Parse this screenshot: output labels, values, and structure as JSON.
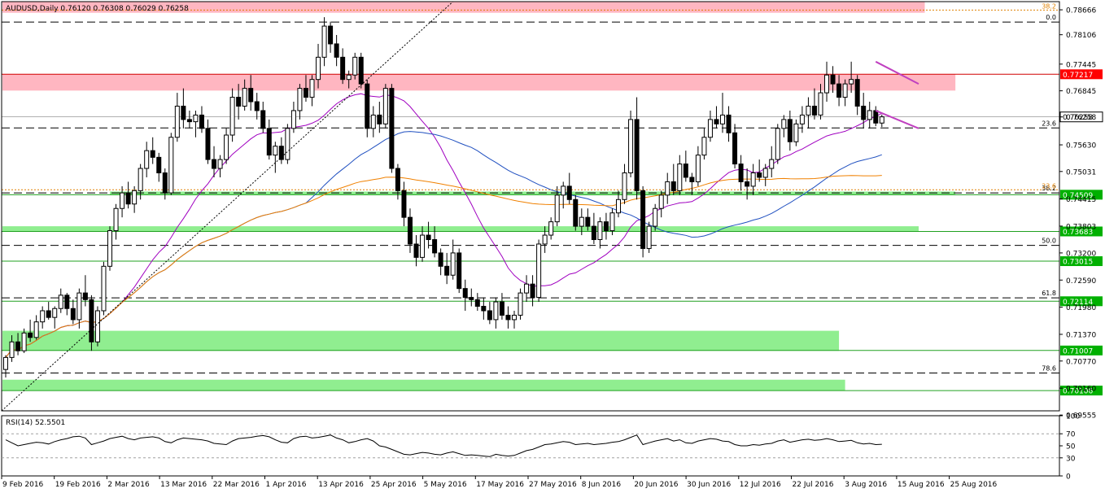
{
  "chart_data": {
    "type": "candlestick",
    "title": "AUDUSD,Daily",
    "ohlc_header": "0.76120 0.76308 0.76029 0.76258",
    "symbol": "AUDUSD",
    "timeframe": "Daily",
    "price_axis": {
      "ylim": [
        0.6965,
        0.7885
      ],
      "ticks": [
        "0.78666",
        "0.78106",
        "0.77445",
        "0.76845",
        "0.76258",
        "0.75630",
        "0.75031",
        "0.74415",
        "0.73803",
        "0.73200",
        "0.72590",
        "0.71980",
        "0.71370",
        "0.70770",
        "0.70160",
        "0.69555"
      ]
    },
    "time_axis": {
      "labels": [
        "9 Feb 2016",
        "19 Feb 2016",
        "2 Mar 2016",
        "13 Mar 2016",
        "22 Mar 2016",
        "1 Apr 2016",
        "13 Apr 2016",
        "25 Apr 2016",
        "5 May 2016",
        "17 May 2016",
        "27 May 2016",
        "8 Jun 2016",
        "20 Jun 2016",
        "30 Jun 2016",
        "12 Jul 2016",
        "22 Jul 2016",
        "3 Aug 2016",
        "15 Aug 2016",
        "25 Aug 2016"
      ]
    },
    "current_price": {
      "value": 0.76258,
      "label": "0.76258"
    },
    "zones": [
      {
        "color": "red",
        "from": 0.786,
        "to": 0.7885,
        "x_end_bar": 150
      },
      {
        "color": "red",
        "from": 0.7685,
        "to": 0.7722,
        "x_end_bar": 155
      },
      {
        "color": "green",
        "from": 0.745,
        "to": 0.7458,
        "x_start_bar": 17,
        "x_end_bar": 155
      },
      {
        "color": "green",
        "from": 0.7368,
        "to": 0.738,
        "x_end_bar": 149
      },
      {
        "color": "green",
        "from": 0.71,
        "to": 0.7145,
        "x_end_bar": 136
      },
      {
        "color": "green",
        "from": 0.701,
        "to": 0.7035,
        "x_end_bar": 137
      }
    ],
    "levels": [
      {
        "value": 0.77217,
        "label": "0.77217",
        "color": "red"
      },
      {
        "value": 0.74509,
        "label": "0.74509",
        "color": "green"
      },
      {
        "value": 0.73683,
        "label": "0.73683",
        "color": "green"
      },
      {
        "value": 0.73015,
        "label": "0.73015",
        "color": "green"
      },
      {
        "value": 0.72114,
        "label": "0.72114",
        "color": "green"
      },
      {
        "value": 0.71007,
        "label": "0.71007",
        "color": "green"
      },
      {
        "value": 0.70106,
        "label": "0.70106",
        "color": "green"
      }
    ],
    "fibonacci": [
      {
        "label": "0.0",
        "value": 0.7839
      },
      {
        "label": "23.6",
        "value": 0.7601
      },
      {
        "label": "38.2",
        "value": 0.7455
      },
      {
        "label": "50.0",
        "value": 0.7337
      },
      {
        "label": "61.8",
        "value": 0.7219
      },
      {
        "label": "78.6",
        "value": 0.705
      }
    ],
    "fibonacci_orange": [
      {
        "label": "38.2",
        "value": 0.7866
      },
      {
        "label": "23.6",
        "value": 0.7462
      }
    ],
    "candles": [
      [
        0.7058,
        0.709,
        0.704,
        0.7085
      ],
      [
        0.7085,
        0.7135,
        0.7075,
        0.712
      ],
      [
        0.712,
        0.714,
        0.709,
        0.71
      ],
      [
        0.71,
        0.715,
        0.7095,
        0.714
      ],
      [
        0.714,
        0.717,
        0.712,
        0.713
      ],
      [
        0.713,
        0.718,
        0.7125,
        0.7165
      ],
      [
        0.7165,
        0.72,
        0.715,
        0.719
      ],
      [
        0.719,
        0.721,
        0.717,
        0.7175
      ],
      [
        0.7175,
        0.72,
        0.715,
        0.7195
      ],
      [
        0.7195,
        0.724,
        0.7185,
        0.7225
      ],
      [
        0.7225,
        0.723,
        0.718,
        0.7195
      ],
      [
        0.7195,
        0.7215,
        0.716,
        0.717
      ],
      [
        0.717,
        0.724,
        0.715,
        0.723
      ],
      [
        0.723,
        0.727,
        0.72,
        0.7215
      ],
      [
        0.7215,
        0.7225,
        0.71,
        0.712
      ],
      [
        0.712,
        0.72,
        0.711,
        0.719
      ],
      [
        0.719,
        0.73,
        0.718,
        0.729
      ],
      [
        0.729,
        0.738,
        0.728,
        0.737
      ],
      [
        0.737,
        0.743,
        0.735,
        0.742
      ],
      [
        0.742,
        0.747,
        0.74,
        0.7455
      ],
      [
        0.7455,
        0.748,
        0.742,
        0.743
      ],
      [
        0.743,
        0.747,
        0.741,
        0.746
      ],
      [
        0.746,
        0.752,
        0.744,
        0.751
      ],
      [
        0.751,
        0.757,
        0.749,
        0.755
      ],
      [
        0.755,
        0.758,
        0.752,
        0.7535
      ],
      [
        0.7535,
        0.7545,
        0.748,
        0.75
      ],
      [
        0.75,
        0.751,
        0.744,
        0.7455
      ],
      [
        0.7455,
        0.759,
        0.745,
        0.758
      ],
      [
        0.758,
        0.768,
        0.757,
        0.765
      ],
      [
        0.765,
        0.769,
        0.76,
        0.762
      ],
      [
        0.762,
        0.764,
        0.76,
        0.7615
      ],
      [
        0.7615,
        0.764,
        0.758,
        0.763
      ],
      [
        0.763,
        0.765,
        0.759,
        0.76
      ],
      [
        0.76,
        0.762,
        0.752,
        0.753
      ],
      [
        0.753,
        0.756,
        0.749,
        0.751
      ],
      [
        0.751,
        0.754,
        0.749,
        0.753
      ],
      [
        0.753,
        0.76,
        0.752,
        0.7585
      ],
      [
        0.7585,
        0.769,
        0.757,
        0.767
      ],
      [
        0.767,
        0.77,
        0.762,
        0.765
      ],
      [
        0.765,
        0.771,
        0.764,
        0.769
      ],
      [
        0.769,
        0.772,
        0.764,
        0.766
      ],
      [
        0.766,
        0.768,
        0.762,
        0.764
      ],
      [
        0.764,
        0.766,
        0.759,
        0.76
      ],
      [
        0.76,
        0.762,
        0.753,
        0.754
      ],
      [
        0.754,
        0.757,
        0.75,
        0.756
      ],
      [
        0.756,
        0.758,
        0.752,
        0.753
      ],
      [
        0.753,
        0.761,
        0.752,
        0.76
      ],
      [
        0.76,
        0.766,
        0.759,
        0.764
      ],
      [
        0.764,
        0.77,
        0.762,
        0.769
      ],
      [
        0.769,
        0.772,
        0.766,
        0.767
      ],
      [
        0.767,
        0.772,
        0.765,
        0.771
      ],
      [
        0.771,
        0.779,
        0.769,
        0.776
      ],
      [
        0.776,
        0.785,
        0.774,
        0.783
      ],
      [
        0.783,
        0.784,
        0.777,
        0.779
      ],
      [
        0.779,
        0.781,
        0.774,
        0.776
      ],
      [
        0.776,
        0.778,
        0.77,
        0.771
      ],
      [
        0.771,
        0.773,
        0.769,
        0.772
      ],
      [
        0.772,
        0.777,
        0.771,
        0.776
      ],
      [
        0.776,
        0.777,
        0.769,
        0.77
      ],
      [
        0.77,
        0.771,
        0.758,
        0.76
      ],
      [
        0.76,
        0.765,
        0.758,
        0.763
      ],
      [
        0.763,
        0.766,
        0.759,
        0.761
      ],
      [
        0.761,
        0.77,
        0.76,
        0.769
      ],
      [
        0.769,
        0.77,
        0.75,
        0.751
      ],
      [
        0.751,
        0.752,
        0.744,
        0.746
      ],
      [
        0.746,
        0.748,
        0.738,
        0.74
      ],
      [
        0.74,
        0.742,
        0.732,
        0.734
      ],
      [
        0.734,
        0.736,
        0.729,
        0.731
      ],
      [
        0.731,
        0.738,
        0.73,
        0.736
      ],
      [
        0.736,
        0.739,
        0.733,
        0.735
      ],
      [
        0.735,
        0.738,
        0.731,
        0.732
      ],
      [
        0.732,
        0.733,
        0.727,
        0.729
      ],
      [
        0.729,
        0.732,
        0.725,
        0.727
      ],
      [
        0.727,
        0.735,
        0.726,
        0.732
      ],
      [
        0.732,
        0.733,
        0.723,
        0.724
      ],
      [
        0.724,
        0.726,
        0.719,
        0.722
      ],
      [
        0.722,
        0.724,
        0.72,
        0.7215
      ],
      [
        0.7215,
        0.723,
        0.719,
        0.72
      ],
      [
        0.72,
        0.722,
        0.717,
        0.719
      ],
      [
        0.719,
        0.721,
        0.716,
        0.717
      ],
      [
        0.717,
        0.722,
        0.715,
        0.721
      ],
      [
        0.721,
        0.723,
        0.717,
        0.718
      ],
      [
        0.718,
        0.72,
        0.715,
        0.717
      ],
      [
        0.717,
        0.719,
        0.715,
        0.718
      ],
      [
        0.718,
        0.724,
        0.717,
        0.723
      ],
      [
        0.723,
        0.727,
        0.721,
        0.725
      ],
      [
        0.725,
        0.727,
        0.72,
        0.722
      ],
      [
        0.722,
        0.735,
        0.721,
        0.734
      ],
      [
        0.734,
        0.738,
        0.732,
        0.736
      ],
      [
        0.736,
        0.74,
        0.735,
        0.739
      ],
      [
        0.739,
        0.747,
        0.738,
        0.745
      ],
      [
        0.745,
        0.748,
        0.742,
        0.747
      ],
      [
        0.747,
        0.75,
        0.743,
        0.744
      ],
      [
        0.744,
        0.745,
        0.737,
        0.738
      ],
      [
        0.738,
        0.742,
        0.736,
        0.74
      ],
      [
        0.74,
        0.742,
        0.737,
        0.738
      ],
      [
        0.738,
        0.741,
        0.734,
        0.735
      ],
      [
        0.735,
        0.74,
        0.733,
        0.739
      ],
      [
        0.739,
        0.741,
        0.735,
        0.737
      ],
      [
        0.737,
        0.742,
        0.736,
        0.741
      ],
      [
        0.741,
        0.746,
        0.74,
        0.744
      ],
      [
        0.744,
        0.752,
        0.743,
        0.75
      ],
      [
        0.75,
        0.764,
        0.749,
        0.762
      ],
      [
        0.762,
        0.767,
        0.744,
        0.746
      ],
      [
        0.746,
        0.747,
        0.731,
        0.733
      ],
      [
        0.733,
        0.739,
        0.732,
        0.738
      ],
      [
        0.738,
        0.743,
        0.737,
        0.742
      ],
      [
        0.742,
        0.746,
        0.74,
        0.745
      ],
      [
        0.745,
        0.75,
        0.743,
        0.748
      ],
      [
        0.748,
        0.752,
        0.745,
        0.746
      ],
      [
        0.746,
        0.754,
        0.745,
        0.752
      ],
      [
        0.752,
        0.755,
        0.748,
        0.749
      ],
      [
        0.749,
        0.75,
        0.745,
        0.748
      ],
      [
        0.748,
        0.756,
        0.747,
        0.754
      ],
      [
        0.754,
        0.76,
        0.753,
        0.758
      ],
      [
        0.758,
        0.764,
        0.757,
        0.762
      ],
      [
        0.762,
        0.765,
        0.76,
        0.761
      ],
      [
        0.761,
        0.768,
        0.759,
        0.763
      ],
      [
        0.763,
        0.765,
        0.757,
        0.759
      ],
      [
        0.759,
        0.761,
        0.751,
        0.752
      ],
      [
        0.752,
        0.754,
        0.746,
        0.748
      ],
      [
        0.748,
        0.751,
        0.744,
        0.747
      ],
      [
        0.747,
        0.752,
        0.745,
        0.75
      ],
      [
        0.75,
        0.753,
        0.748,
        0.749
      ],
      [
        0.749,
        0.752,
        0.747,
        0.751
      ],
      [
        0.751,
        0.756,
        0.749,
        0.753
      ],
      [
        0.753,
        0.761,
        0.752,
        0.76
      ],
      [
        0.76,
        0.763,
        0.758,
        0.762
      ],
      [
        0.762,
        0.764,
        0.755,
        0.757
      ],
      [
        0.757,
        0.762,
        0.756,
        0.761
      ],
      [
        0.761,
        0.765,
        0.759,
        0.763
      ],
      [
        0.763,
        0.767,
        0.76,
        0.765
      ],
      [
        0.765,
        0.769,
        0.762,
        0.763
      ],
      [
        0.763,
        0.77,
        0.762,
        0.768
      ],
      [
        0.768,
        0.775,
        0.766,
        0.772
      ],
      [
        0.772,
        0.774,
        0.768,
        0.77
      ],
      [
        0.77,
        0.772,
        0.765,
        0.767
      ],
      [
        0.767,
        0.771,
        0.765,
        0.77
      ],
      [
        0.77,
        0.775,
        0.768,
        0.771
      ],
      [
        0.771,
        0.772,
        0.763,
        0.765
      ],
      [
        0.765,
        0.768,
        0.76,
        0.762
      ],
      [
        0.762,
        0.766,
        0.76,
        0.764
      ],
      [
        0.764,
        0.765,
        0.7605,
        0.7612
      ],
      [
        0.7612,
        0.7631,
        0.7603,
        0.7626
      ]
    ],
    "series": [
      {
        "name": "",
        "color": "#a000c0"
      },
      {
        "name": "",
        "color": "#2050c0"
      },
      {
        "name": "",
        "color": "#f08000"
      }
    ],
    "rsi": {
      "label": "RSI(14) 52.5501",
      "ticks": [
        "100",
        "70",
        "50",
        "30",
        "0"
      ],
      "levels": [
        70,
        30
      ],
      "values": [
        60,
        55,
        50,
        52,
        54,
        56,
        55,
        53,
        57,
        60,
        62,
        65,
        66,
        63,
        52,
        55,
        58,
        62,
        64,
        66,
        62,
        60,
        63,
        64,
        65,
        63,
        57,
        55,
        60,
        63,
        62,
        61,
        60,
        58,
        54,
        53,
        52,
        58,
        62,
        63,
        64,
        66,
        67,
        65,
        60,
        56,
        55,
        62,
        65,
        66,
        63,
        64,
        66,
        68,
        63,
        60,
        55,
        57,
        60,
        62,
        58,
        50,
        48,
        44,
        40,
        36,
        35,
        37,
        39,
        38,
        36,
        35,
        38,
        40,
        37,
        34,
        35,
        34,
        33,
        32,
        36,
        34,
        33,
        34,
        38,
        42,
        44,
        48,
        52,
        53,
        55,
        57,
        56,
        52,
        53,
        54,
        52,
        53,
        54,
        56,
        57,
        60,
        64,
        68,
        52,
        55,
        58,
        60,
        62,
        58,
        60,
        55,
        54,
        58,
        60,
        62,
        61,
        58,
        57,
        52,
        50,
        50,
        52,
        51,
        53,
        54,
        58,
        60,
        56,
        58,
        60,
        61,
        59,
        60,
        62,
        60,
        57,
        58,
        59,
        55,
        53,
        54,
        52,
        52.55
      ]
    }
  }
}
